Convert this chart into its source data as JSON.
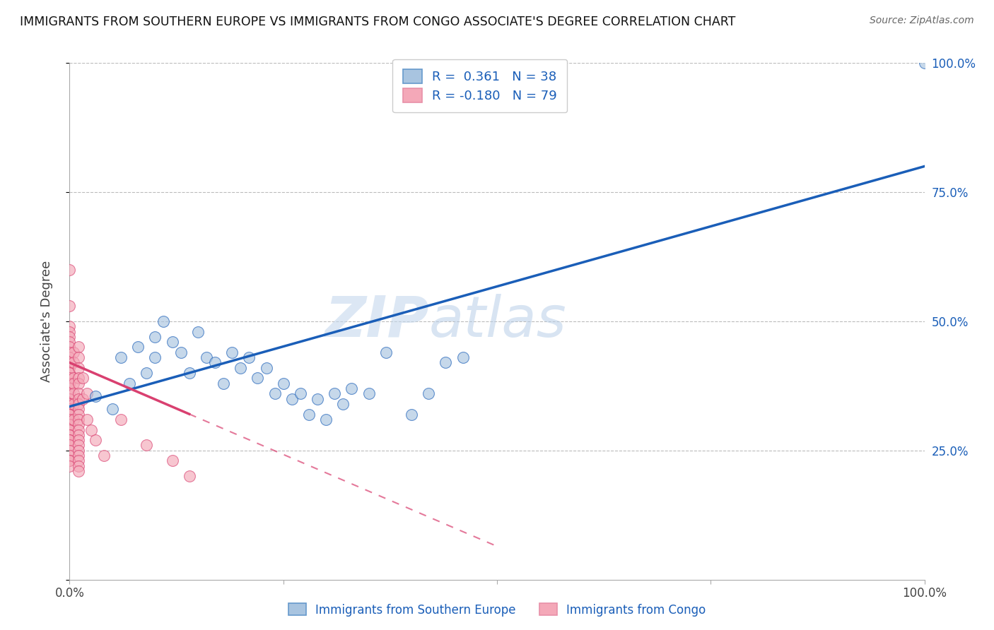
{
  "title": "IMMIGRANTS FROM SOUTHERN EUROPE VS IMMIGRANTS FROM CONGO ASSOCIATE'S DEGREE CORRELATION CHART",
  "source": "Source: ZipAtlas.com",
  "ylabel": "Associate's Degree",
  "r_blue": 0.361,
  "n_blue": 38,
  "r_pink": -0.18,
  "n_pink": 79,
  "blue_color": "#a8c4e0",
  "pink_color": "#f4a8b8",
  "blue_line_color": "#1a5eb8",
  "pink_line_color": "#d94070",
  "watermark_zip": "ZIP",
  "watermark_atlas": "atlas",
  "legend_label_blue": "Immigrants from Southern Europe",
  "legend_label_pink": "Immigrants from Congo",
  "blue_scatter_x": [
    0.03,
    0.05,
    0.06,
    0.07,
    0.08,
    0.09,
    0.1,
    0.1,
    0.11,
    0.12,
    0.13,
    0.14,
    0.15,
    0.16,
    0.17,
    0.18,
    0.19,
    0.2,
    0.21,
    0.22,
    0.23,
    0.24,
    0.25,
    0.26,
    0.27,
    0.28,
    0.29,
    0.3,
    0.31,
    0.32,
    0.33,
    0.35,
    0.37,
    0.4,
    0.42,
    0.44,
    0.46,
    1.0
  ],
  "blue_scatter_y": [
    0.355,
    0.33,
    0.43,
    0.38,
    0.45,
    0.4,
    0.43,
    0.47,
    0.5,
    0.46,
    0.44,
    0.4,
    0.48,
    0.43,
    0.42,
    0.38,
    0.44,
    0.41,
    0.43,
    0.39,
    0.41,
    0.36,
    0.38,
    0.35,
    0.36,
    0.32,
    0.35,
    0.31,
    0.36,
    0.34,
    0.37,
    0.36,
    0.44,
    0.32,
    0.36,
    0.42,
    0.43,
    1.0
  ],
  "pink_scatter_x": [
    0.0,
    0.0,
    0.0,
    0.0,
    0.0,
    0.0,
    0.0,
    0.0,
    0.0,
    0.0,
    0.0,
    0.0,
    0.0,
    0.0,
    0.0,
    0.0,
    0.0,
    0.0,
    0.0,
    0.0,
    0.0,
    0.0,
    0.0,
    0.0,
    0.0,
    0.0,
    0.0,
    0.0,
    0.0,
    0.0,
    0.0,
    0.0,
    0.0,
    0.0,
    0.0,
    0.0,
    0.0,
    0.0,
    0.0,
    0.0,
    0.005,
    0.005,
    0.005,
    0.005,
    0.005,
    0.005,
    0.005,
    0.01,
    0.01,
    0.01,
    0.01,
    0.01,
    0.01,
    0.01,
    0.01,
    0.01,
    0.01,
    0.01,
    0.01,
    0.01,
    0.01,
    0.01,
    0.01,
    0.01,
    0.01,
    0.01,
    0.01,
    0.01,
    0.015,
    0.015,
    0.02,
    0.02,
    0.025,
    0.03,
    0.04,
    0.06,
    0.09,
    0.12,
    0.14
  ],
  "pink_scatter_y": [
    0.6,
    0.53,
    0.49,
    0.48,
    0.47,
    0.46,
    0.45,
    0.44,
    0.43,
    0.42,
    0.41,
    0.4,
    0.4,
    0.39,
    0.38,
    0.38,
    0.37,
    0.36,
    0.35,
    0.35,
    0.34,
    0.34,
    0.33,
    0.33,
    0.32,
    0.32,
    0.31,
    0.3,
    0.3,
    0.29,
    0.28,
    0.28,
    0.27,
    0.27,
    0.26,
    0.25,
    0.24,
    0.23,
    0.23,
    0.22,
    0.44,
    0.42,
    0.39,
    0.38,
    0.36,
    0.34,
    0.31,
    0.45,
    0.43,
    0.41,
    0.39,
    0.38,
    0.36,
    0.35,
    0.34,
    0.33,
    0.32,
    0.31,
    0.3,
    0.29,
    0.28,
    0.27,
    0.26,
    0.25,
    0.24,
    0.23,
    0.22,
    0.21,
    0.39,
    0.35,
    0.36,
    0.31,
    0.29,
    0.27,
    0.24,
    0.31,
    0.26,
    0.23,
    0.2
  ]
}
